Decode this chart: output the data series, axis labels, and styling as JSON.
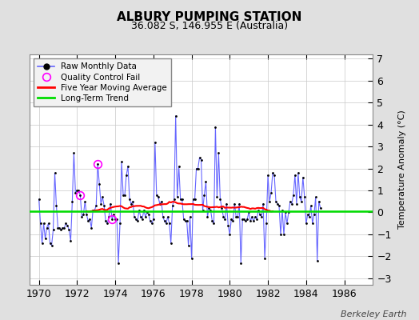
{
  "title": "ALBURY PUMPING STATION",
  "subtitle": "36.082 S, 146.955 E (Australia)",
  "ylabel": "Temperature Anomaly (°C)",
  "credit": "Berkeley Earth",
  "xlim": [
    1969.5,
    1987.5
  ],
  "ylim": [
    -3.3,
    7.2
  ],
  "yticks": [
    -3,
    -2,
    -1,
    0,
    1,
    2,
    3,
    4,
    5,
    6,
    7
  ],
  "xticks": [
    1970,
    1972,
    1974,
    1976,
    1978,
    1980,
    1982,
    1984,
    1986
  ],
  "bg_color": "#e0e0e0",
  "plot_bg_color": "#ffffff",
  "raw_color": "#6666ff",
  "dot_color": "#000000",
  "ma_color": "#ff0000",
  "trend_color": "#00dd00",
  "qc_color": "#ff00ff",
  "long_term_trend_value": 0.07,
  "start_year": 1970,
  "start_month": 1,
  "monthly_data": [
    0.6,
    -0.5,
    -1.4,
    -0.5,
    -1.2,
    -0.7,
    -0.5,
    -1.4,
    -1.5,
    -0.8,
    1.8,
    0.3,
    -0.7,
    -0.7,
    -0.8,
    -0.7,
    -0.7,
    -0.5,
    -0.6,
    -0.8,
    -1.3,
    0.5,
    2.7,
    0.9,
    1.0,
    1.0,
    0.8,
    -0.2,
    -0.1,
    0.5,
    -0.1,
    -0.4,
    -0.3,
    -0.7,
    0.1,
    0.1,
    0.3,
    2.2,
    1.3,
    0.4,
    0.7,
    0.3,
    -0.4,
    -0.5,
    -0.2,
    0.4,
    -0.3,
    -0.1,
    -0.3,
    -0.3,
    -2.3,
    -0.5,
    2.3,
    0.8,
    0.8,
    1.7,
    2.1,
    0.6,
    0.4,
    0.5,
    -0.2,
    -0.3,
    -0.4,
    0.1,
    -0.2,
    -0.3,
    0.1,
    -0.2,
    0.0,
    -0.1,
    -0.4,
    -0.5,
    -0.3,
    3.2,
    0.8,
    0.7,
    0.4,
    0.5,
    -0.2,
    -0.4,
    -0.5,
    -0.2,
    -0.5,
    -1.4,
    0.3,
    0.6,
    4.4,
    0.7,
    2.1,
    0.6,
    0.6,
    -0.3,
    -0.4,
    -0.4,
    -1.5,
    -0.2,
    -2.1,
    0.6,
    0.6,
    2.0,
    2.0,
    2.5,
    2.4,
    0.1,
    0.8,
    1.4,
    -0.2,
    0.2,
    0.1,
    -0.4,
    -0.5,
    3.9,
    0.7,
    2.7,
    0.6,
    0.2,
    -0.2,
    -0.3,
    0.4,
    -0.6,
    -1.0,
    -0.3,
    -0.4,
    0.4,
    -0.2,
    -0.2,
    0.4,
    -2.3,
    -0.3,
    -0.3,
    -0.4,
    -0.3,
    0.0,
    -0.4,
    -0.2,
    -0.4,
    -0.2,
    -0.3,
    0.1,
    -0.1,
    -0.2,
    0.4,
    -2.1,
    -0.5,
    1.7,
    0.5,
    0.9,
    1.8,
    1.7,
    0.5,
    0.4,
    0.3,
    -1.0,
    0.1,
    -1.0,
    0.0,
    -0.5,
    0.0,
    0.5,
    0.4,
    0.8,
    1.7,
    0.4,
    1.8,
    0.7,
    0.5,
    1.6,
    0.7,
    -0.5,
    -0.1,
    -0.2,
    0.3,
    -0.5,
    -0.1,
    0.7,
    -2.2,
    0.5,
    0.2
  ],
  "qc_fail_indices": [
    26,
    37,
    46
  ]
}
